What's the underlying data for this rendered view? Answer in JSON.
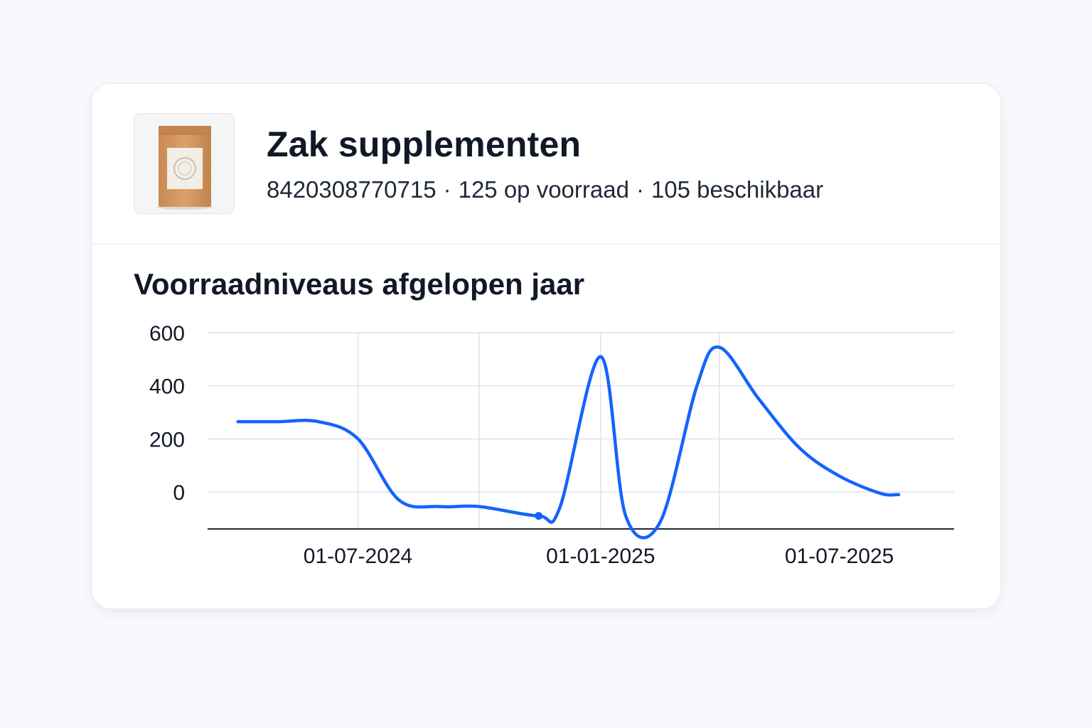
{
  "product": {
    "name": "Zak supplementen",
    "barcode": "8420308770715",
    "stock_text": "125 op voorraad",
    "available_text": "105 beschikbaar",
    "separator": "·",
    "image_icon": "supplement-bag-icon"
  },
  "colors": {
    "line": "#1463ff",
    "grid": "#dde3ec",
    "axis": "#1f2937",
    "card_bg": "#ffffff",
    "page_bg": "#f7f9fc"
  },
  "chart_data": {
    "type": "line",
    "title": "Voorraadniveaus afgelopen jaar",
    "xlabel": "",
    "ylabel": "",
    "x_ticks": [
      "01-07-2024",
      "01-01-2025",
      "01-07-2025"
    ],
    "y_ticks": [
      0,
      200,
      400,
      600
    ],
    "ylim": [
      -140,
      600
    ],
    "xlim": [
      "2024-03-09",
      "2025-09-26"
    ],
    "grid": true,
    "legend": "none",
    "series": [
      {
        "highlight_index": 7,
        "points": [
          {
            "x": "2024-04-01",
            "y": 265
          },
          {
            "x": "2024-05-01",
            "y": 265
          },
          {
            "x": "2024-06-01",
            "y": 265
          },
          {
            "x": "2024-07-01",
            "y": 200
          },
          {
            "x": "2024-08-01",
            "y": -30
          },
          {
            "x": "2024-09-01",
            "y": -55
          },
          {
            "x": "2024-10-01",
            "y": -55
          },
          {
            "x": "2024-11-15",
            "y": -90
          },
          {
            "x": "2024-12-01",
            "y": -60
          },
          {
            "x": "2025-01-01",
            "y": 510
          },
          {
            "x": "2025-01-20",
            "y": -90
          },
          {
            "x": "2025-02-15",
            "y": -115
          },
          {
            "x": "2025-03-15",
            "y": 400
          },
          {
            "x": "2025-04-01",
            "y": 545
          },
          {
            "x": "2025-05-01",
            "y": 350
          },
          {
            "x": "2025-06-01",
            "y": 165
          },
          {
            "x": "2025-07-01",
            "y": 60
          },
          {
            "x": "2025-08-01",
            "y": -5
          },
          {
            "x": "2025-08-15",
            "y": -10
          }
        ]
      }
    ]
  }
}
